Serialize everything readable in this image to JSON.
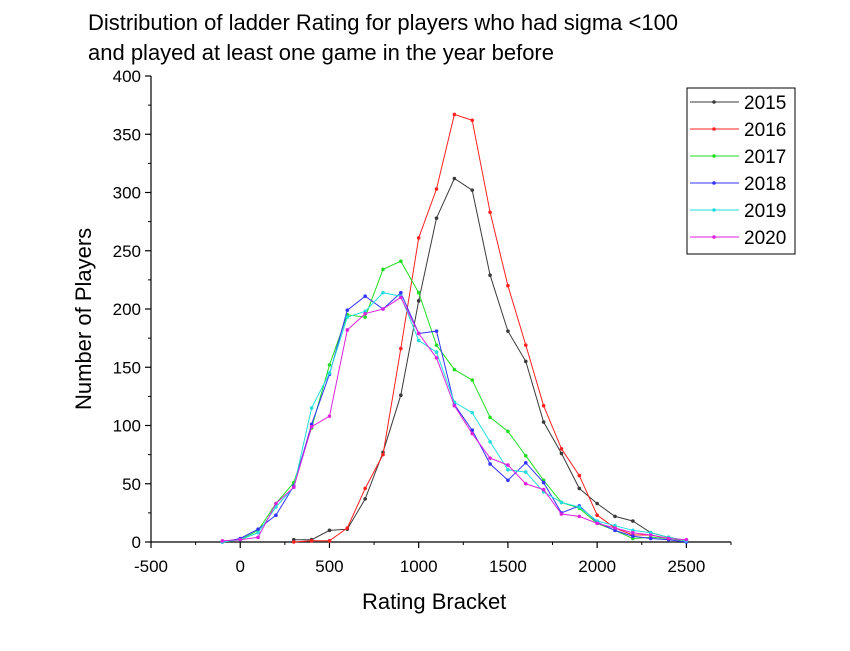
{
  "chart_data": {
    "type": "line",
    "title_line1": "Distribution of ladder Rating for players who had sigma <100",
    "title_line2": "and played at least one game in the year before",
    "xlabel": "Rating Bracket",
    "ylabel": "Number of Players",
    "xlim": [
      -500,
      2750
    ],
    "ylim": [
      0,
      400
    ],
    "xticks": [
      -500,
      0,
      500,
      1000,
      1500,
      2000,
      2500
    ],
    "yticks": [
      0,
      50,
      100,
      150,
      200,
      250,
      300,
      350,
      400
    ],
    "legend_position": "top-right",
    "series": [
      {
        "name": "2015",
        "color": "#3a3a3a",
        "x": [
          300,
          400,
          500,
          600,
          700,
          800,
          900,
          1000,
          1100,
          1200,
          1300,
          1400,
          1500,
          1600,
          1700,
          1800,
          1900,
          2000,
          2100,
          2200,
          2300,
          2400,
          2500
        ],
        "y": [
          2,
          2,
          10,
          11,
          37,
          77,
          126,
          207,
          278,
          312,
          302,
          229,
          181,
          155,
          103,
          76,
          46,
          33,
          22,
          18,
          8,
          4,
          1
        ]
      },
      {
        "name": "2016",
        "color": "#ff2020",
        "x": [
          300,
          400,
          500,
          600,
          700,
          800,
          900,
          1000,
          1100,
          1200,
          1300,
          1400,
          1500,
          1600,
          1700,
          1800,
          1900,
          2000,
          2100,
          2200,
          2300,
          2400,
          2500
        ],
        "y": [
          0,
          1,
          1,
          12,
          46,
          75,
          166,
          261,
          303,
          367,
          362,
          283,
          220,
          169,
          117,
          80,
          57,
          23,
          12,
          6,
          6,
          3,
          1
        ]
      },
      {
        "name": "2017",
        "color": "#22dd22",
        "x": [
          -100,
          0,
          100,
          200,
          300,
          400,
          500,
          600,
          700,
          800,
          900,
          1000,
          1100,
          1200,
          1300,
          1400,
          1500,
          1600,
          1700,
          1800,
          1900,
          2000,
          2100,
          2200,
          2300,
          2400,
          2500
        ],
        "y": [
          0,
          2,
          10,
          33,
          51,
          98,
          152,
          195,
          193,
          234,
          241,
          214,
          169,
          148,
          139,
          107,
          95,
          74,
          53,
          34,
          29,
          16,
          10,
          3,
          4,
          3,
          1
        ]
      },
      {
        "name": "2018",
        "color": "#3333ff",
        "x": [
          -100,
          0,
          100,
          200,
          300,
          400,
          500,
          600,
          700,
          800,
          900,
          1000,
          1100,
          1200,
          1300,
          1400,
          1500,
          1600,
          1700,
          1800,
          1900,
          2000,
          2100,
          2200,
          2300,
          2400,
          2500
        ],
        "y": [
          0,
          3,
          11,
          23,
          48,
          101,
          144,
          199,
          211,
          200,
          214,
          179,
          181,
          118,
          96,
          67,
          53,
          68,
          51,
          25,
          31,
          17,
          10,
          5,
          3,
          2,
          0
        ]
      },
      {
        "name": "2019",
        "color": "#22dddd",
        "x": [
          -100,
          0,
          100,
          200,
          300,
          400,
          500,
          600,
          700,
          800,
          900,
          1000,
          1100,
          1200,
          1300,
          1400,
          1500,
          1600,
          1700,
          1800,
          1900,
          2000,
          2100,
          2200,
          2300,
          2400,
          2500
        ],
        "y": [
          0,
          2,
          8,
          30,
          47,
          115,
          145,
          193,
          198,
          214,
          211,
          173,
          163,
          120,
          111,
          86,
          62,
          60,
          43,
          34,
          30,
          18,
          14,
          10,
          8,
          4,
          1
        ]
      },
      {
        "name": "2020",
        "color": "#dd22dd",
        "x": [
          -100,
          0,
          100,
          200,
          300,
          400,
          500,
          600,
          700,
          800,
          900,
          1000,
          1100,
          1200,
          1300,
          1400,
          1500,
          1600,
          1700,
          1800,
          1900,
          2000,
          2100,
          2200,
          2300,
          2400,
          2500
        ],
        "y": [
          1,
          2,
          4,
          33,
          47,
          99,
          108,
          182,
          196,
          200,
          210,
          179,
          158,
          117,
          93,
          72,
          66,
          50,
          45,
          24,
          22,
          16,
          12,
          8,
          6,
          3,
          2
        ]
      }
    ]
  }
}
